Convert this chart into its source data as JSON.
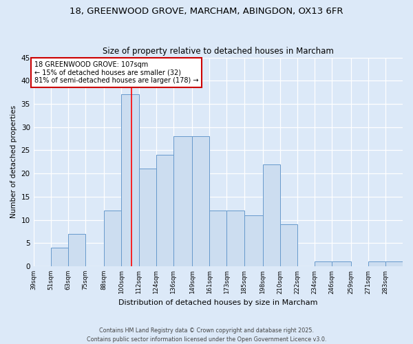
{
  "title_line1": "18, GREENWOOD GROVE, MARCHAM, ABINGDON, OX13 6FR",
  "title_line2": "Size of property relative to detached houses in Marcham",
  "xlabel": "Distribution of detached houses by size in Marcham",
  "ylabel": "Number of detached properties",
  "bin_edges": [
    39,
    51,
    63,
    75,
    88,
    100,
    112,
    124,
    136,
    149,
    161,
    173,
    185,
    198,
    210,
    222,
    234,
    246,
    259,
    271,
    283,
    295
  ],
  "counts": [
    0,
    4,
    7,
    0,
    12,
    37,
    21,
    24,
    28,
    28,
    12,
    12,
    11,
    22,
    9,
    0,
    1,
    1,
    0,
    1,
    1
  ],
  "bar_color": "#ccddf0",
  "bar_edge_color": "#6699cc",
  "red_line_x": 107,
  "annotation_title": "18 GREENWOOD GROVE: 107sqm",
  "annotation_line1": "← 15% of detached houses are smaller (32)",
  "annotation_line2": "81% of semi-detached houses are larger (178) →",
  "annotation_box_color": "#ffffff",
  "annotation_box_edge": "#cc0000",
  "ylim": [
    0,
    45
  ],
  "yticks": [
    0,
    5,
    10,
    15,
    20,
    25,
    30,
    35,
    40,
    45
  ],
  "background_color": "#dce9f8",
  "plot_bg_color": "#dce9f8",
  "footer_line1": "Contains HM Land Registry data © Crown copyright and database right 2025.",
  "footer_line2": "Contains public sector information licensed under the Open Government Licence v3.0.",
  "tick_labels": [
    "39sqm",
    "51sqm",
    "63sqm",
    "75sqm",
    "88sqm",
    "100sqm",
    "112sqm",
    "124sqm",
    "136sqm",
    "149sqm",
    "161sqm",
    "173sqm",
    "185sqm",
    "198sqm",
    "210sqm",
    "222sqm",
    "234sqm",
    "246sqm",
    "259sqm",
    "271sqm",
    "283sqm"
  ]
}
